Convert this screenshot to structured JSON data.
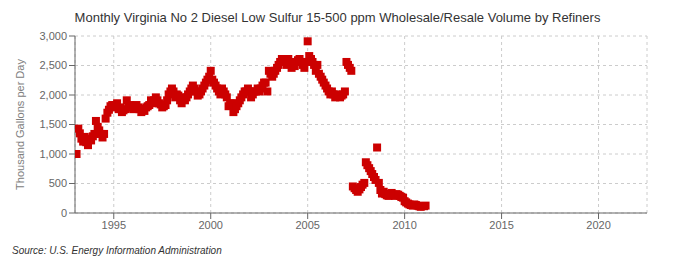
{
  "chart_data": {
    "type": "scatter",
    "title": "Monthly Virginia No 2 Diesel Low Sulfur 15-500 ppm Wholesale/Resale Volume by Refiners",
    "ylabel": "Thousand Gallons per Day",
    "source": "Source: U.S. Energy Information Administration",
    "color": "#CC0000",
    "marker": "square",
    "grid": true,
    "xlim": [
      1993.0,
      2022.5
    ],
    "ylim": [
      0,
      3000
    ],
    "xticks": [
      1995,
      2000,
      2005,
      2010,
      2015,
      2020
    ],
    "yticks": [
      0,
      500,
      {
        "value": 1000,
        "label": "1,000"
      },
      {
        "value": 1500,
        "label": "1,500"
      },
      {
        "value": 2000,
        "label": "2,000"
      },
      {
        "value": 2500,
        "label": "2,500"
      },
      {
        "value": 3000,
        "label": "3,000"
      }
    ],
    "x": [
      1993.08,
      1993.17,
      1993.25,
      1993.33,
      1993.42,
      1993.5,
      1993.58,
      1993.67,
      1993.75,
      1993.83,
      1993.92,
      1994.0,
      1994.08,
      1994.17,
      1994.25,
      1994.33,
      1994.42,
      1994.5,
      1994.58,
      1994.67,
      1994.75,
      1994.83,
      1994.92,
      1995.0,
      1995.08,
      1995.17,
      1995.25,
      1995.33,
      1995.42,
      1995.5,
      1995.58,
      1995.67,
      1995.75,
      1995.83,
      1995.92,
      1996.0,
      1996.08,
      1996.17,
      1996.25,
      1996.33,
      1996.42,
      1996.5,
      1996.58,
      1996.67,
      1996.75,
      1996.83,
      1996.92,
      1997.0,
      1997.08,
      1997.17,
      1997.25,
      1997.33,
      1997.42,
      1997.5,
      1997.58,
      1997.67,
      1997.75,
      1997.83,
      1997.92,
      1998.0,
      1998.08,
      1998.17,
      1998.25,
      1998.33,
      1998.42,
      1998.5,
      1998.58,
      1998.67,
      1998.75,
      1998.83,
      1998.92,
      1999.0,
      1999.08,
      1999.17,
      1999.25,
      1999.33,
      1999.42,
      1999.5,
      1999.58,
      1999.67,
      1999.75,
      1999.83,
      1999.92,
      2000.0,
      2000.08,
      2000.17,
      2000.25,
      2000.33,
      2000.42,
      2000.5,
      2000.58,
      2000.67,
      2000.75,
      2000.83,
      2000.92,
      2001.0,
      2001.08,
      2001.17,
      2001.25,
      2001.33,
      2001.42,
      2001.5,
      2001.58,
      2001.67,
      2001.75,
      2001.83,
      2001.92,
      2002.0,
      2002.08,
      2002.17,
      2002.25,
      2002.33,
      2002.42,
      2002.5,
      2002.58,
      2002.67,
      2002.75,
      2002.83,
      2002.92,
      2003.0,
      2003.08,
      2003.17,
      2003.25,
      2003.33,
      2003.42,
      2003.5,
      2003.58,
      2003.67,
      2003.75,
      2003.83,
      2003.92,
      2004.0,
      2004.08,
      2004.17,
      2004.25,
      2004.33,
      2004.42,
      2004.5,
      2004.58,
      2004.67,
      2004.75,
      2004.83,
      2004.92,
      2005.0,
      2005.08,
      2005.17,
      2005.25,
      2005.33,
      2005.42,
      2005.5,
      2005.58,
      2005.67,
      2005.75,
      2005.83,
      2005.92,
      2006.0,
      2006.08,
      2006.17,
      2006.25,
      2006.33,
      2006.42,
      2006.5,
      2006.58,
      2006.67,
      2006.75,
      2006.83,
      2006.92,
      2007.0,
      2007.08,
      2007.17,
      2007.25,
      2007.33,
      2007.42,
      2007.5,
      2007.58,
      2007.67,
      2007.75,
      2007.83,
      2007.92,
      2008.0,
      2008.08,
      2008.17,
      2008.25,
      2008.33,
      2008.42,
      2008.5,
      2008.58,
      2008.67,
      2008.75,
      2008.83,
      2008.92,
      2009.0,
      2009.08,
      2009.17,
      2009.25,
      2009.33,
      2009.42,
      2009.5,
      2009.58,
      2009.67,
      2009.75,
      2009.83,
      2009.92,
      2010.0,
      2010.08,
      2010.17,
      2010.25,
      2010.33,
      2010.42,
      2010.5,
      2010.58,
      2010.67,
      2010.75,
      2010.83,
      2011.0,
      2011.08
    ],
    "values": [
      1000,
      1430,
      1350,
      1260,
      1210,
      1290,
      1200,
      1150,
      1260,
      1230,
      1300,
      1340,
      1560,
      1460,
      1400,
      1340,
      1280,
      1340,
      1600,
      1700,
      1750,
      1810,
      1830,
      1790,
      1830,
      1860,
      1760,
      1790,
      1710,
      1740,
      1760,
      1910,
      1790,
      1830,
      1790,
      1760,
      1810,
      1830,
      1790,
      1760,
      1710,
      1760,
      1730,
      1790,
      1810,
      1830,
      1910,
      1860,
      1910,
      1960,
      1910,
      1860,
      1840,
      1790,
      1810,
      1830,
      1910,
      2010,
      2060,
      2110,
      2060,
      1960,
      2010,
      1990,
      1910,
      1860,
      1960,
      1910,
      1960,
      2010,
      2060,
      2110,
      2160,
      2110,
      2060,
      1990,
      2010,
      2060,
      2110,
      2160,
      2210,
      2260,
      2310,
      2410,
      2260,
      2210,
      2160,
      2110,
      2060,
      2010,
      2110,
      2060,
      2010,
      1960,
      1810,
      1860,
      1860,
      1710,
      1760,
      1810,
      1860,
      1910,
      1960,
      2010,
      2060,
      2060,
      2110,
      2060,
      1960,
      2010,
      2060,
      2060,
      2110,
      2060,
      2110,
      2160,
      2210,
      2210,
      2060,
      2410,
      2360,
      2310,
      2360,
      2410,
      2460,
      2510,
      2560,
      2610,
      2610,
      2560,
      2510,
      2610,
      2560,
      2460,
      2510,
      2490,
      2560,
      2590,
      2610,
      2560,
      2510,
      2460,
      2560,
      2910,
      2660,
      2610,
      2560,
      2510,
      2410,
      2510,
      2360,
      2310,
      2260,
      2210,
      2160,
      2110,
      2060,
      2010,
      2060,
      2010,
      1960,
      2010,
      1990,
      1960,
      1990,
      2010,
      2060,
      2560,
      2510,
      2460,
      2410,
      450,
      420,
      390,
      360,
      400,
      440,
      480,
      510,
      860,
      810,
      760,
      710,
      660,
      610,
      560,
      1110,
      510,
      390,
      330,
      360,
      320,
      300,
      290,
      320,
      340,
      310,
      290,
      320,
      310,
      290,
      270,
      260,
      200,
      180,
      160,
      145,
      135,
      125,
      145,
      135,
      125,
      115,
      105,
      115,
      125
    ]
  }
}
